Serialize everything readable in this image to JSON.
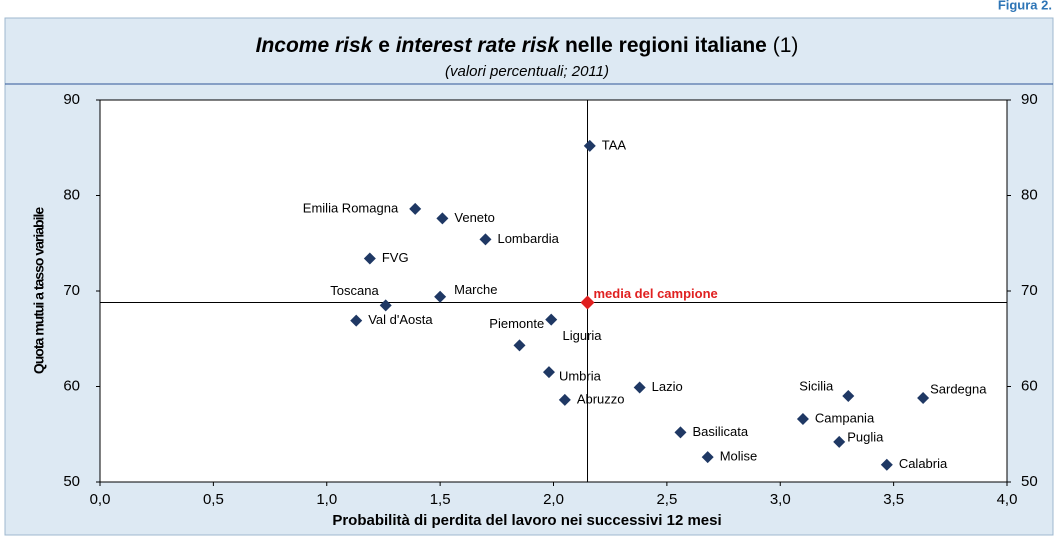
{
  "figure_label": "Figura 2.",
  "chart_data": {
    "type": "scatter",
    "title_parts": [
      {
        "text": "Income risk",
        "italic": true
      },
      {
        "text": " e ",
        "italic": false
      },
      {
        "text": "interest rate risk",
        "italic": true
      },
      {
        "text": " nelle regioni italiane ",
        "italic": false
      },
      {
        "text": "(1)",
        "italic": false
      }
    ],
    "subtitle": "(valori percentuali; 2011)",
    "xlabel": "Probabilità di perdita del lavoro nei successivi 12 mesi",
    "ylabel": "Quota mutui a tasso variabile",
    "xlim": [
      0,
      4
    ],
    "ylim": [
      50,
      90
    ],
    "xticks": [
      {
        "value": 0,
        "label": "0,0"
      },
      {
        "value": 0.5,
        "label": "0,5"
      },
      {
        "value": 1,
        "label": "1,0"
      },
      {
        "value": 1.5,
        "label": "1,5"
      },
      {
        "value": 2,
        "label": "2,0"
      },
      {
        "value": 2.5,
        "label": "2,5"
      },
      {
        "value": 3,
        "label": "3,0"
      },
      {
        "value": 3.5,
        "label": "3,5"
      },
      {
        "value": 4,
        "label": "4,0"
      }
    ],
    "yticks": [
      50,
      60,
      70,
      80,
      90
    ],
    "color": "#1f3864",
    "points": {
      "labels": [
        "TAA",
        "Emilia Romagna",
        "Veneto",
        "Lombardia",
        "FVG",
        "Toscana",
        "Marche",
        "Val d'Aosta",
        "Piemonte",
        "Liguria",
        "Umbria",
        "Abruzzo",
        "Lazio",
        "Basilicata",
        "Molise",
        "Sicilia",
        "Campania",
        "Puglia",
        "Sardegna",
        "Calabria"
      ],
      "x": [
        2.16,
        1.39,
        1.51,
        1.7,
        1.19,
        1.26,
        1.5,
        1.13,
        1.99,
        1.85,
        1.98,
        2.05,
        2.38,
        2.56,
        2.68,
        3.3,
        3.1,
        3.26,
        3.63,
        3.47
      ],
      "y": [
        85.2,
        78.6,
        77.6,
        75.4,
        73.4,
        68.5,
        69.4,
        66.9,
        67.0,
        64.3,
        61.5,
        58.6,
        59.9,
        55.2,
        52.6,
        59.0,
        56.6,
        54.2,
        58.8,
        51.8
      ]
    },
    "mean": {
      "label": "media del campione",
      "x": 2.15,
      "y": 68.8,
      "color": "#e02020"
    }
  }
}
